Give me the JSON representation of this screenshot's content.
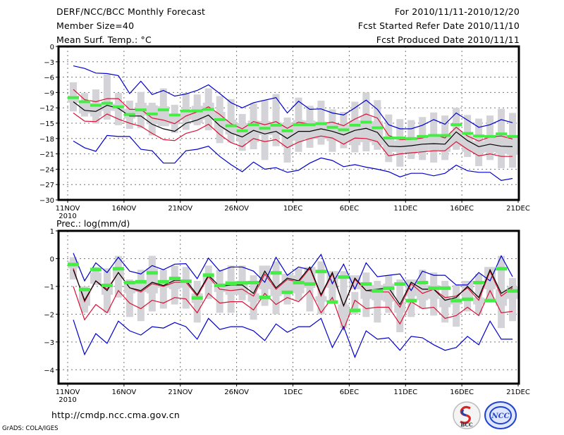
{
  "header": {
    "title": "DERF/NCC/BCC Monthly Forecast",
    "member_size": "Member Size=40",
    "variable": "Mean Surf. Temp.: °C",
    "period": "For 2010/11/11-2010/12/20",
    "fcst_started": "Fcst Started Refer Date 2010/11/10",
    "fcst_produced": "Fcst Produced Date 2010/11/11"
  },
  "footer": {
    "url": "http://cmdp.ncc.cma.gov.cn",
    "credit": "GrADS: COLA/IGES",
    "logos": [
      "BCC",
      "NCC"
    ]
  },
  "colors": {
    "envelope": "#0000cc",
    "spread": "#dd1133",
    "ensemble_mean": "#000000",
    "median_marker": "#44ee44",
    "box": "#d3d3d8",
    "grid": "#777777"
  },
  "chart_data": [
    {
      "type": "line",
      "title": "Mean Surf. Temp.: °C",
      "xlabel": "",
      "ylabel": "",
      "x_start": "2010-11-11",
      "n_days": 40,
      "xticks": [
        {
          "day": 0,
          "label": "11NOV",
          "sub": "2010"
        },
        {
          "day": 5,
          "label": "16NOV"
        },
        {
          "day": 10,
          "label": "21NOV"
        },
        {
          "day": 15,
          "label": "26NOV"
        },
        {
          "day": 20,
          "label": "1DEC"
        },
        {
          "day": 25,
          "label": "6DEC"
        },
        {
          "day": 30,
          "label": "11DEC"
        },
        {
          "day": 35,
          "label": "16DEC"
        },
        {
          "day": 40,
          "label": "21DEC"
        }
      ],
      "ylim": [
        -30,
        0
      ],
      "yticks": [
        0,
        -3,
        -6,
        -9,
        -12,
        -15,
        -18,
        -21,
        -24,
        -27,
        -30
      ],
      "grid": true,
      "series": [
        {
          "name": "max",
          "style": "blue",
          "values": [
            -3.8,
            -4.3,
            -5.2,
            -5.3,
            -5.7,
            -9.2,
            -6.8,
            -9.4,
            -8.6,
            -9.7,
            -9.3,
            -8.6,
            -7.5,
            -9.2,
            -11.0,
            -12.0,
            -11.0,
            -10.5,
            -10.0,
            -13.0,
            -10.7,
            -12.3,
            -12.2,
            -13.0,
            -13.4,
            -12.0,
            -10.5,
            -12.3,
            -15.3,
            -16.1,
            -16.1,
            -15.4,
            -14.3,
            -15.2,
            -13.0,
            -14.4,
            -15.8,
            -15.3,
            -14.3,
            -14.9
          ]
        },
        {
          "name": "upper",
          "style": "red",
          "values": [
            -8.4,
            -10.4,
            -10.8,
            -10.2,
            -10.2,
            -12.3,
            -12.3,
            -14.0,
            -14.4,
            -15.1,
            -13.6,
            -12.8,
            -11.8,
            -13.3,
            -15.1,
            -16.1,
            -14.7,
            -15.3,
            -14.7,
            -16.0,
            -14.8,
            -15.2,
            -15.1,
            -14.8,
            -15.5,
            -14.2,
            -13.2,
            -14.0,
            -17.4,
            -18.2,
            -18.2,
            -17.9,
            -17.2,
            -17.9,
            -15.8,
            -17.5,
            -18.5,
            -17.7,
            -17.5,
            -18.1
          ]
        },
        {
          "name": "mean",
          "style": "black",
          "values": [
            -10.8,
            -12.5,
            -12.7,
            -11.5,
            -12.1,
            -13.6,
            -13.6,
            -15.2,
            -16.1,
            -16.6,
            -15.0,
            -14.4,
            -13.4,
            -15.5,
            -16.9,
            -17.7,
            -16.4,
            -17.1,
            -16.6,
            -18.0,
            -16.6,
            -16.6,
            -16.1,
            -16.6,
            -17.3,
            -16.4,
            -16.0,
            -16.8,
            -19.5,
            -19.6,
            -19.4,
            -19.1,
            -19.0,
            -19.1,
            -16.7,
            -18.4,
            -19.6,
            -19.1,
            -19.5,
            -19.6
          ]
        },
        {
          "name": "lower",
          "style": "red",
          "values": [
            -13.0,
            -14.6,
            -14.7,
            -13.2,
            -14.2,
            -15.0,
            -15.6,
            -17.0,
            -18.2,
            -18.4,
            -17.0,
            -16.4,
            -15.2,
            -17.2,
            -18.8,
            -19.6,
            -18.0,
            -18.6,
            -18.2,
            -19.8,
            -18.7,
            -18.0,
            -17.5,
            -17.9,
            -19.1,
            -17.9,
            -18.0,
            -18.6,
            -21.4,
            -21.0,
            -20.8,
            -20.6,
            -20.4,
            -20.4,
            -18.6,
            -20.1,
            -21.4,
            -21.0,
            -21.5,
            -21.5
          ]
        },
        {
          "name": "min",
          "style": "blue",
          "values": [
            -18.5,
            -19.8,
            -20.5,
            -17.4,
            -17.6,
            -17.6,
            -20.1,
            -20.4,
            -22.8,
            -22.8,
            -20.4,
            -20.1,
            -19.5,
            -21.5,
            -23.1,
            -24.5,
            -22.6,
            -24.0,
            -23.7,
            -24.6,
            -24.2,
            -22.8,
            -21.8,
            -22.3,
            -23.5,
            -23.1,
            -23.6,
            -24.0,
            -24.5,
            -25.5,
            -24.8,
            -24.8,
            -25.3,
            -24.8,
            -23.2,
            -24.3,
            -24.6,
            -24.6,
            -26.2,
            -25.8
          ]
        }
      ],
      "boxes": {
        "whisker_high": [
          -7.0,
          -9.1,
          -8.4,
          -5.5,
          -9.1,
          -10.6,
          -8.9,
          -11.0,
          -8.2,
          -11.4,
          -9.1,
          -9.4,
          -8.2,
          -9.7,
          -10.3,
          -13.2,
          -11.1,
          -10.5,
          -9.3,
          -13.9,
          -10.0,
          -11.6,
          -10.6,
          -12.3,
          -12.8,
          -10.8,
          -9.0,
          -10.5,
          -13.3,
          -14.2,
          -14.4,
          -13.8,
          -12.9,
          -13.5,
          -12.0,
          -13.4,
          -14.1,
          -13.5,
          -12.2,
          -13.0
        ],
        "q_high": [
          -9.6,
          -10.6,
          -11.0,
          -11.0,
          -11.2,
          -12.2,
          -11.0,
          -11.5,
          -11.7,
          -13.7,
          -12.5,
          -11.6,
          -11.0,
          -12.8,
          -14.3,
          -15.0,
          -14.5,
          -14.6,
          -14.8,
          -15.0,
          -14.4,
          -14.5,
          -14.7,
          -15.0,
          -15.3,
          -14.4,
          -13.7,
          -14.6,
          -17.7,
          -18.4,
          -17.8,
          -17.6,
          -17.6,
          -17.7,
          -16.5,
          -17.4,
          -18.5,
          -17.8,
          -17.0,
          -17.6
        ],
        "q_low": [
          -11.0,
          -13.1,
          -13.7,
          -12.6,
          -12.6,
          -14.1,
          -13.5,
          -15.2,
          -15.6,
          -15.2,
          -14.3,
          -15.0,
          -14.3,
          -16.3,
          -17.2,
          -18.6,
          -18.7,
          -17.3,
          -17.3,
          -19.6,
          -18.4,
          -18.1,
          -18.1,
          -18.5,
          -18.6,
          -19.3,
          -18.7,
          -19.3,
          -20.6,
          -20.6,
          -20.9,
          -20.5,
          -20.3,
          -20.6,
          -19.6,
          -20.6,
          -20.9,
          -20.7,
          -21.0,
          -21.2
        ],
        "whisker_low": [
          -12.7,
          -13.7,
          -15.1,
          -14.3,
          -15.4,
          -16.1,
          -16.0,
          -17.4,
          -15.4,
          -16.9,
          -16.3,
          -15.4,
          -16.4,
          -18.9,
          -18.8,
          -20.4,
          -20.1,
          -22.2,
          -19.5,
          -22.7,
          -20.6,
          -19.8,
          -19.2,
          -20.6,
          -19.9,
          -20.7,
          -20.5,
          -20.2,
          -22.6,
          -23.5,
          -22.0,
          -22.2,
          -22.7,
          -22.2,
          -20.2,
          -21.6,
          -23.4,
          -22.2,
          -23.8,
          -23.7
        ],
        "median": [
          -10.0,
          -10.8,
          -11.5,
          -11.1,
          -11.8,
          -13.3,
          -12.4,
          -13.2,
          -12.4,
          -13.4,
          -12.6,
          -12.6,
          -12.3,
          -14.3,
          -15.5,
          -16.5,
          -15.3,
          -16.0,
          -15.4,
          -16.5,
          -15.3,
          -15.3,
          -15.1,
          -15.8,
          -16.3,
          -15.4,
          -14.8,
          -15.9,
          -17.9,
          -17.9,
          -18.0,
          -17.6,
          -17.4,
          -17.4,
          -15.3,
          -17.0,
          -17.5,
          -17.6,
          -17.1,
          -17.6
        ]
      }
    },
    {
      "type": "line",
      "title": "Prec.: log(mm/d)",
      "xlabel": "",
      "ylabel": "",
      "x_start": "2010-11-11",
      "n_days": 40,
      "xticks": [
        {
          "day": 0,
          "label": "11NOV",
          "sub": "2010"
        },
        {
          "day": 5,
          "label": "16NOV"
        },
        {
          "day": 10,
          "label": "21NOV"
        },
        {
          "day": 15,
          "label": "26NOV"
        },
        {
          "day": 20,
          "label": "1DEC"
        },
        {
          "day": 25,
          "label": "6DEC"
        },
        {
          "day": 30,
          "label": "11DEC"
        },
        {
          "day": 35,
          "label": "16DEC"
        },
        {
          "day": 40,
          "label": "21DEC"
        }
      ],
      "ylim": [
        -4.5,
        1
      ],
      "yticks": [
        1,
        0,
        -1,
        -2,
        -3,
        -4
      ],
      "grid": true,
      "series": [
        {
          "name": "max",
          "style": "blue",
          "values": [
            0.2,
            -0.8,
            -0.15,
            -0.5,
            0.05,
            -0.45,
            -0.55,
            -0.25,
            -0.4,
            -0.2,
            -0.18,
            -0.72,
            0.02,
            -0.45,
            -0.3,
            -0.3,
            -0.45,
            -0.85,
            0.05,
            -0.6,
            -0.3,
            -0.4,
            0.15,
            -0.9,
            -0.2,
            -1.1,
            -0.15,
            -0.65,
            -0.6,
            -0.55,
            -1.15,
            -0.45,
            -0.6,
            -0.6,
            -0.95,
            -0.95,
            -0.5,
            -0.8,
            0.1,
            -0.65
          ]
        },
        {
          "name": "upper",
          "style": "red",
          "values": [
            -0.35,
            -1.55,
            -0.8,
            -1.1,
            -0.5,
            -1.05,
            -1.2,
            -0.9,
            -1.0,
            -0.85,
            -0.85,
            -1.35,
            -0.65,
            -1.1,
            -1.15,
            -1.1,
            -1.35,
            -0.55,
            -1.1,
            -0.75,
            -0.85,
            -0.35,
            -1.35,
            -0.55,
            -1.7,
            -0.75,
            -1.15,
            -1.2,
            -1.2,
            -1.75,
            -0.9,
            -1.25,
            -1.1,
            -1.4,
            -1.35,
            -1.05,
            -1.5,
            -0.45,
            -1.35,
            -1.05
          ]
        },
        {
          "name": "mean",
          "style": "black",
          "values": [
            -0.4,
            -1.5,
            -0.8,
            -1.15,
            -0.5,
            -1.05,
            -1.15,
            -0.85,
            -0.97,
            -0.78,
            -0.78,
            -1.3,
            -0.6,
            -1.0,
            -0.95,
            -0.95,
            -1.25,
            -0.45,
            -1.05,
            -0.7,
            -0.8,
            -0.3,
            -1.3,
            -0.5,
            -1.7,
            -0.7,
            -1.15,
            -1.1,
            -1.05,
            -1.65,
            -0.85,
            -1.1,
            -1.1,
            -1.5,
            -1.4,
            -1.0,
            -1.4,
            -0.4,
            -1.25,
            -1.0
          ]
        },
        {
          "name": "lower",
          "style": "red",
          "values": [
            -1.0,
            -2.2,
            -1.65,
            -1.95,
            -1.15,
            -1.6,
            -1.8,
            -1.5,
            -1.6,
            -1.4,
            -1.45,
            -1.95,
            -1.25,
            -1.6,
            -1.55,
            -1.55,
            -1.85,
            -1.25,
            -1.65,
            -1.4,
            -1.55,
            -1.15,
            -1.95,
            -1.4,
            -2.55,
            -1.5,
            -1.8,
            -1.75,
            -1.75,
            -2.35,
            -1.55,
            -1.8,
            -1.75,
            -2.15,
            -2.05,
            -1.75,
            -2.05,
            -1.15,
            -1.95,
            -1.9
          ]
        },
        {
          "name": "min",
          "style": "blue",
          "values": [
            -2.2,
            -3.45,
            -2.7,
            -3.05,
            -2.25,
            -2.6,
            -2.75,
            -2.45,
            -2.5,
            -2.3,
            -2.45,
            -2.9,
            -2.15,
            -2.55,
            -2.45,
            -2.45,
            -2.6,
            -2.95,
            -2.35,
            -2.65,
            -2.45,
            -2.45,
            -2.15,
            -3.2,
            -2.45,
            -3.55,
            -2.6,
            -2.9,
            -2.85,
            -3.3,
            -2.8,
            -2.85,
            -3.1,
            -3.3,
            -3.2,
            -2.8,
            -3.1,
            -2.25,
            -2.9,
            -2.9
          ]
        }
      ],
      "boxes": {
        "whisker_high": [
          0.05,
          -1.0,
          -0.3,
          -0.35,
          0.1,
          -0.75,
          -0.4,
          0.1,
          -0.4,
          -0.25,
          -0.3,
          -0.8,
          -0.25,
          -0.4,
          -0.25,
          -0.25,
          -0.6,
          -0.8,
          -0.1,
          -0.55,
          -0.35,
          -0.35,
          -0.1,
          -0.6,
          -0.45,
          -1.2,
          -0.5,
          -0.8,
          -0.6,
          -0.75,
          -1.0,
          -0.4,
          -0.5,
          -0.8,
          -0.95,
          -0.9,
          -0.55,
          -0.75,
          0.1,
          -0.7
        ],
        "q_high": [
          -0.1,
          -1.1,
          -0.5,
          -0.9,
          -0.35,
          -0.8,
          -0.85,
          -0.35,
          -0.8,
          -0.7,
          -0.75,
          -1.25,
          -0.6,
          -0.9,
          -0.8,
          -0.8,
          -1.25,
          -0.25,
          -0.9,
          -0.55,
          -0.6,
          -0.3,
          -1.35,
          -0.45,
          -1.65,
          -0.6,
          -0.85,
          -0.95,
          -0.9,
          -1.55,
          -0.75,
          -0.95,
          -0.95,
          -1.4,
          -1.45,
          -0.8,
          -1.4,
          -0.3,
          -1.1,
          -1.0
        ],
        "q_low": [
          -0.35,
          -1.7,
          -0.9,
          -1.3,
          -0.7,
          -1.25,
          -1.2,
          -1.25,
          -1.05,
          -1.1,
          -1.05,
          -1.6,
          -0.9,
          -1.2,
          -1.3,
          -1.3,
          -1.55,
          -1.1,
          -1.35,
          -1.15,
          -1.25,
          -1.05,
          -1.55,
          -1.05,
          -2.1,
          -1.1,
          -1.45,
          -1.5,
          -1.55,
          -1.95,
          -1.35,
          -1.5,
          -1.45,
          -1.75,
          -1.65,
          -1.4,
          -1.65,
          -1.1,
          -1.7,
          -1.45
        ],
        "whisker_low": [
          -0.75,
          -1.95,
          -0.95,
          -1.95,
          -1.4,
          -2.1,
          -2.25,
          -1.9,
          -1.8,
          -1.65,
          -1.8,
          -2.3,
          -1.45,
          -1.95,
          -1.95,
          -1.5,
          -2.2,
          -1.7,
          -2.0,
          -1.65,
          -1.5,
          -1.9,
          -2.0,
          -1.55,
          -2.5,
          -2.0,
          -2.1,
          -2.3,
          -1.95,
          -2.65,
          -2.1,
          -1.8,
          -2.05,
          -2.3,
          -2.45,
          -1.9,
          -2.0,
          -1.5,
          -2.5,
          -2.25
        ],
        "median": [
          -0.2,
          -1.1,
          -0.38,
          -0.95,
          -0.35,
          -0.85,
          -0.82,
          -0.5,
          -0.82,
          -0.7,
          -0.8,
          -1.4,
          -0.58,
          -0.95,
          -0.88,
          -0.86,
          -0.85,
          -1.38,
          -0.5,
          -1.2,
          -0.85,
          -0.9,
          -0.45,
          -1.55,
          -0.65,
          -1.85,
          -0.9,
          -1.15,
          -1.05,
          -0.9,
          -1.5,
          -0.85,
          -1.05,
          -1.05,
          -1.5,
          -1.45,
          -0.85,
          -1.5,
          -0.35,
          -1.15
        ]
      }
    }
  ]
}
